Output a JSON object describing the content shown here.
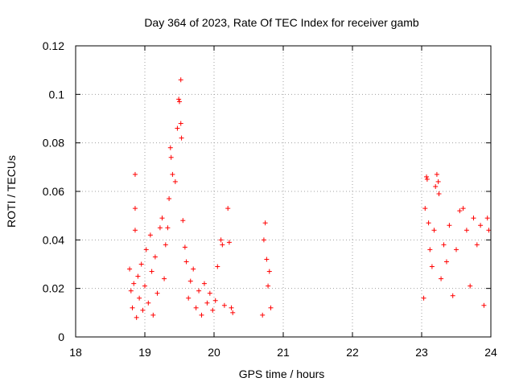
{
  "chart_data": {
    "type": "scatter",
    "title": "Day 364 of 2023, Rate Of TEC Index for receiver gamb",
    "xlabel": "GPS time / hours",
    "ylabel": "ROTI / TECUs",
    "xlim": [
      18,
      24
    ],
    "ylim": [
      0,
      0.12
    ],
    "xticks": [
      18,
      19,
      20,
      21,
      22,
      23,
      24
    ],
    "yticks": [
      0,
      0.02,
      0.04,
      0.06,
      0.08,
      0.1,
      0.12
    ],
    "xtick_labels": [
      "18",
      "19",
      "20",
      "21",
      "22",
      "23",
      "24"
    ],
    "ytick_labels": [
      "0",
      "0.02",
      "0.04",
      "0.06",
      "0.08",
      "0.1",
      "0.12"
    ],
    "grid": true,
    "marker": "+",
    "color": "#ff0000",
    "series": [
      {
        "name": "gamb",
        "points": [
          [
            18.78,
            0.028
          ],
          [
            18.8,
            0.019
          ],
          [
            18.82,
            0.012
          ],
          [
            18.84,
            0.022
          ],
          [
            18.86,
            0.067
          ],
          [
            18.86,
            0.053
          ],
          [
            18.86,
            0.044
          ],
          [
            18.88,
            0.008
          ],
          [
            18.9,
            0.025
          ],
          [
            18.92,
            0.016
          ],
          [
            18.95,
            0.03
          ],
          [
            18.97,
            0.011
          ],
          [
            19.0,
            0.021
          ],
          [
            19.02,
            0.036
          ],
          [
            19.05,
            0.014
          ],
          [
            19.08,
            0.042
          ],
          [
            19.1,
            0.027
          ],
          [
            19.12,
            0.009
          ],
          [
            19.15,
            0.033
          ],
          [
            19.18,
            0.018
          ],
          [
            19.22,
            0.045
          ],
          [
            19.25,
            0.049
          ],
          [
            19.28,
            0.024
          ],
          [
            19.3,
            0.038
          ],
          [
            19.33,
            0.045
          ],
          [
            19.35,
            0.057
          ],
          [
            19.37,
            0.078
          ],
          [
            19.38,
            0.074
          ],
          [
            19.4,
            0.067
          ],
          [
            19.44,
            0.064
          ],
          [
            19.47,
            0.086
          ],
          [
            19.49,
            0.098
          ],
          [
            19.5,
            0.097
          ],
          [
            19.52,
            0.106
          ],
          [
            19.52,
            0.088
          ],
          [
            19.53,
            0.082
          ],
          [
            19.55,
            0.048
          ],
          [
            19.58,
            0.037
          ],
          [
            19.6,
            0.031
          ],
          [
            19.63,
            0.016
          ],
          [
            19.66,
            0.023
          ],
          [
            19.7,
            0.028
          ],
          [
            19.74,
            0.012
          ],
          [
            19.78,
            0.019
          ],
          [
            19.82,
            0.009
          ],
          [
            19.86,
            0.022
          ],
          [
            19.9,
            0.014
          ],
          [
            19.94,
            0.018
          ],
          [
            19.98,
            0.011
          ],
          [
            20.02,
            0.015
          ],
          [
            20.05,
            0.029
          ],
          [
            20.1,
            0.04
          ],
          [
            20.12,
            0.038
          ],
          [
            20.15,
            0.013
          ],
          [
            20.2,
            0.053
          ],
          [
            20.22,
            0.039
          ],
          [
            20.25,
            0.012
          ],
          [
            20.27,
            0.01
          ],
          [
            20.7,
            0.009
          ],
          [
            20.72,
            0.04
          ],
          [
            20.74,
            0.047
          ],
          [
            20.76,
            0.032
          ],
          [
            20.78,
            0.021
          ],
          [
            20.8,
            0.027
          ],
          [
            20.82,
            0.012
          ],
          [
            23.03,
            0.016
          ],
          [
            23.05,
            0.053
          ],
          [
            23.07,
            0.066
          ],
          [
            23.08,
            0.065
          ],
          [
            23.1,
            0.047
          ],
          [
            23.12,
            0.036
          ],
          [
            23.15,
            0.029
          ],
          [
            23.18,
            0.044
          ],
          [
            23.2,
            0.062
          ],
          [
            23.22,
            0.067
          ],
          [
            23.24,
            0.064
          ],
          [
            23.25,
            0.059
          ],
          [
            23.28,
            0.024
          ],
          [
            23.32,
            0.038
          ],
          [
            23.36,
            0.031
          ],
          [
            23.4,
            0.046
          ],
          [
            23.45,
            0.017
          ],
          [
            23.5,
            0.036
          ],
          [
            23.55,
            0.052
          ],
          [
            23.6,
            0.053
          ],
          [
            23.65,
            0.044
          ],
          [
            23.7,
            0.021
          ],
          [
            23.75,
            0.049
          ],
          [
            23.8,
            0.038
          ],
          [
            23.85,
            0.046
          ],
          [
            23.9,
            0.013
          ],
          [
            23.95,
            0.049
          ],
          [
            23.97,
            0.044
          ]
        ]
      }
    ]
  }
}
